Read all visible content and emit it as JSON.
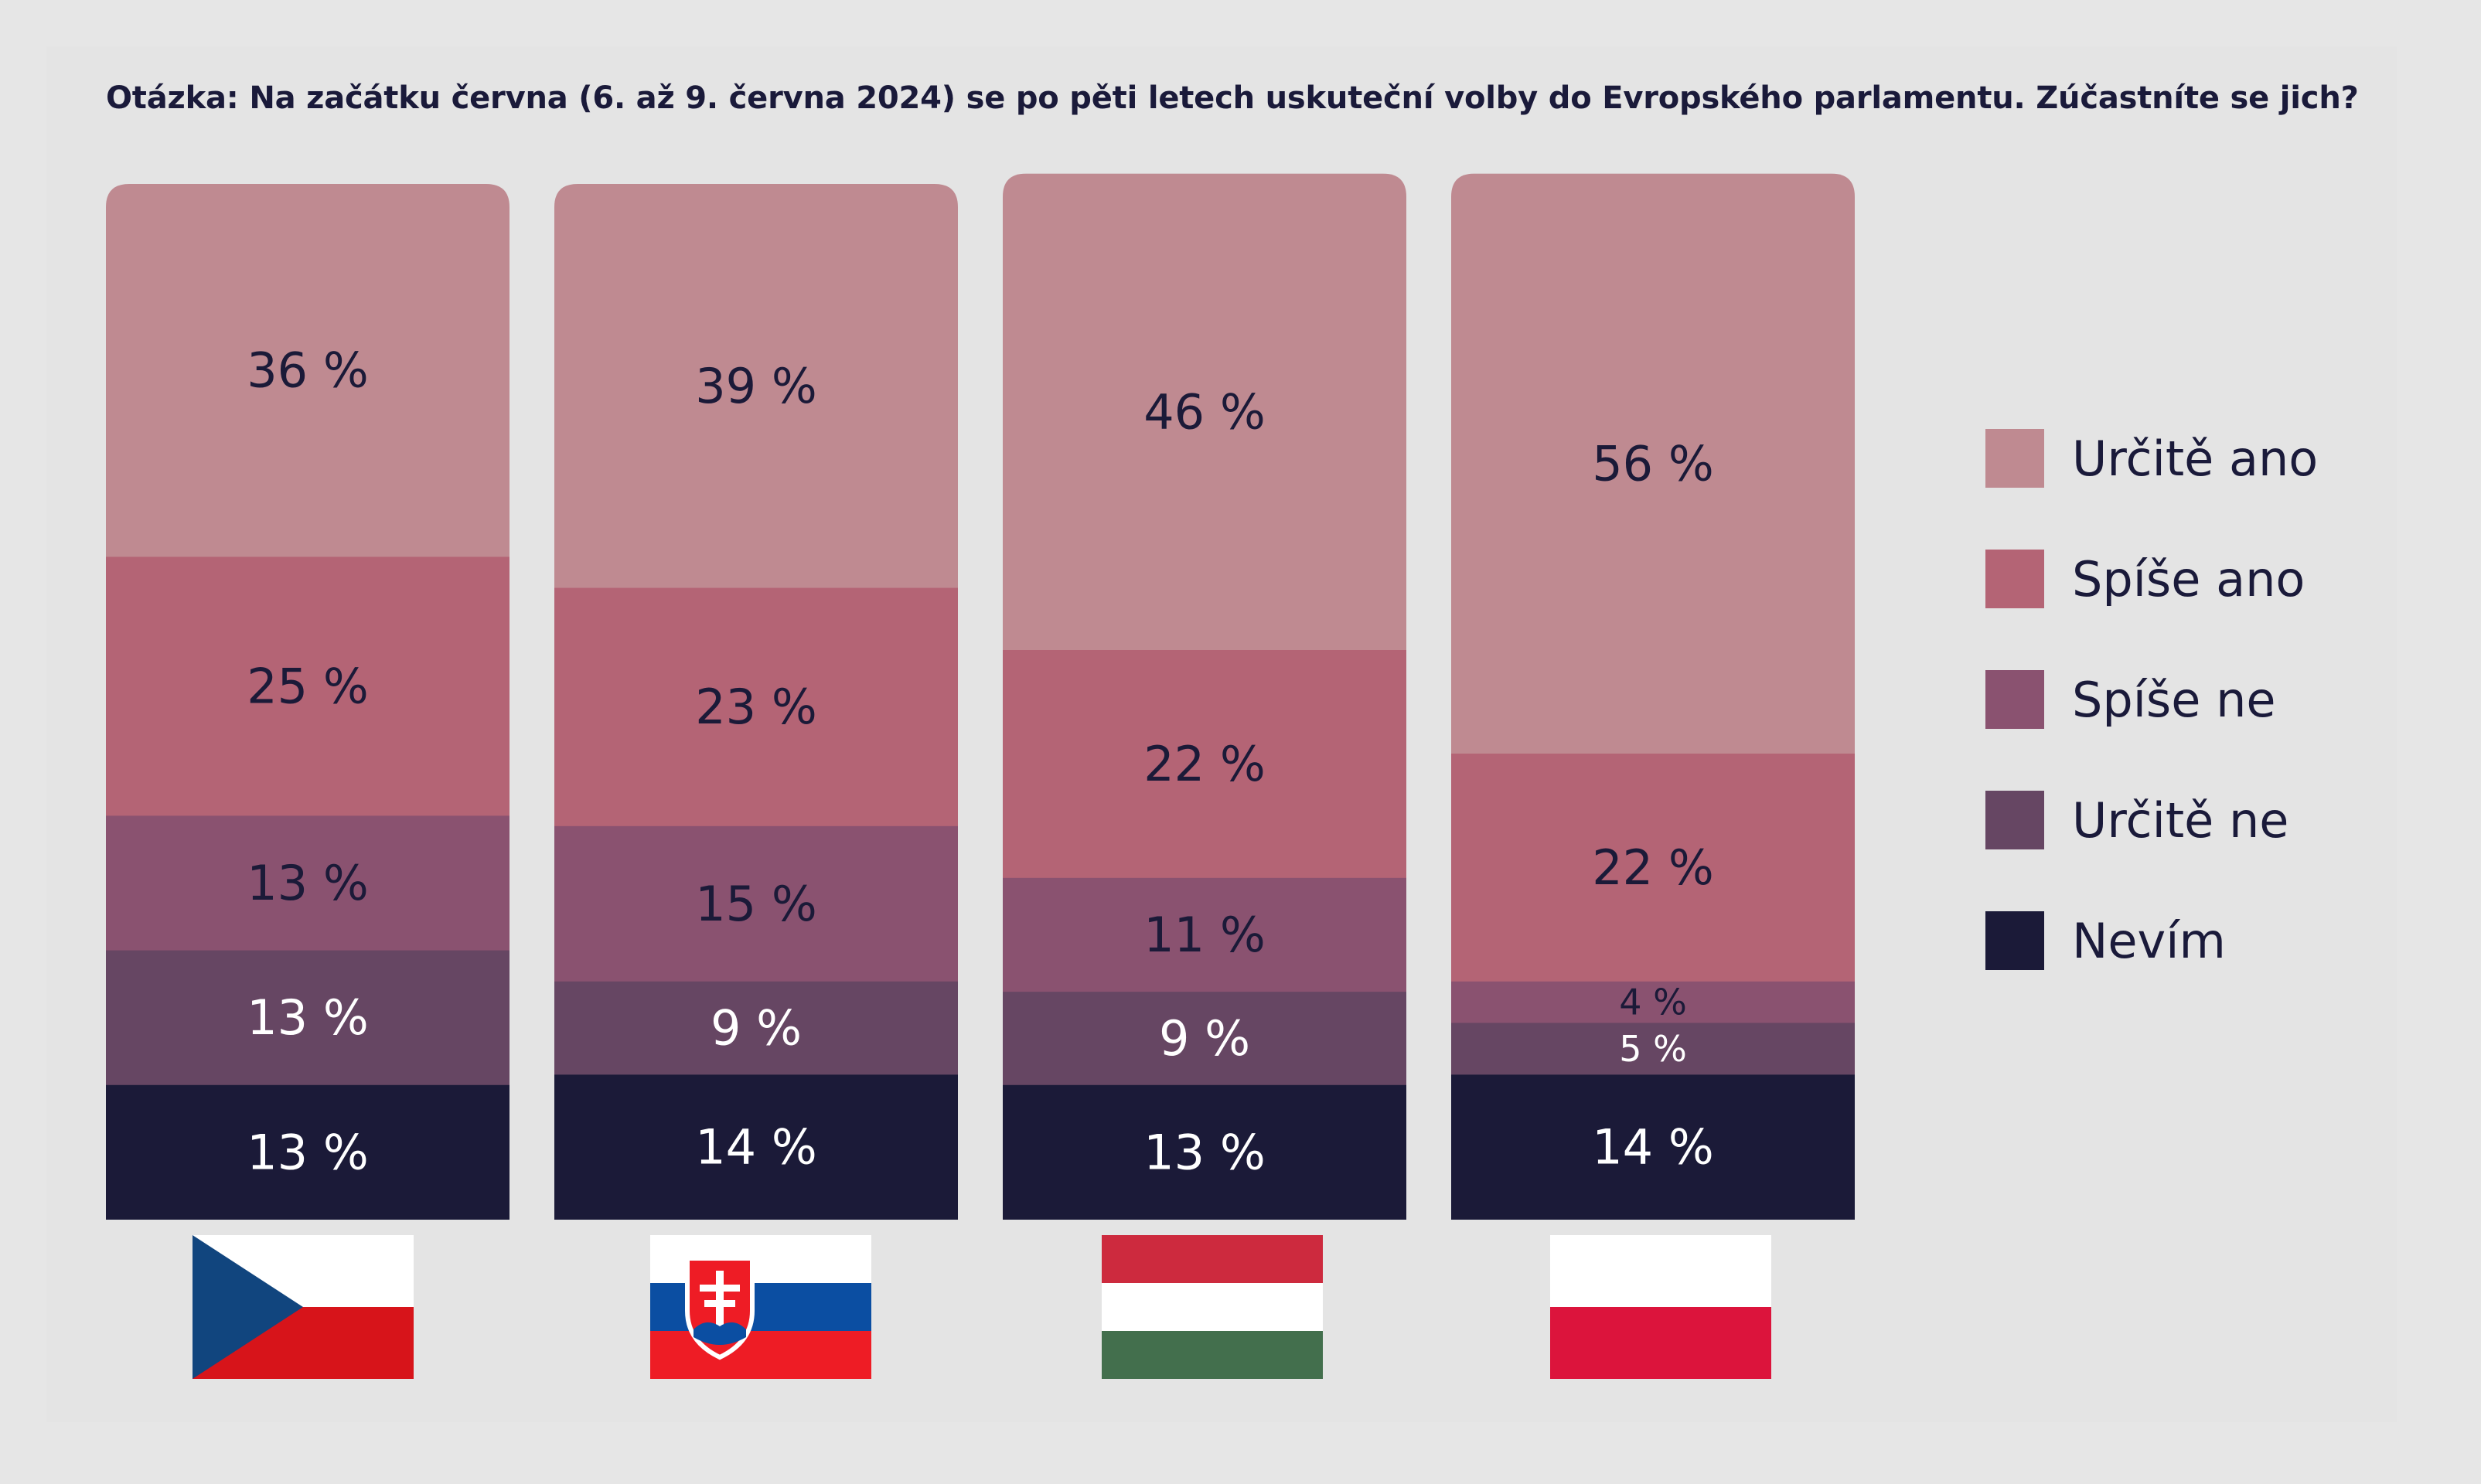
{
  "question": "Otázka: Na začátku června (6. až 9. června 2024) se po pěti letech uskuteční volby do Evropského parlamentu. Zúčastníte se jich?",
  "colors": {
    "urcite_ano": "#bf8a91",
    "spise_ano": "#b46475",
    "spise_ne": "#8a5270",
    "urcite_ne": "#664663",
    "nevim": "#1b1a38",
    "label_dark": "#1b1a38",
    "label_light": "#ffffff"
  },
  "chart_data": {
    "type": "bar",
    "stacked": true,
    "orientation": "vertical",
    "categories": [
      "CZ",
      "SK",
      "HU",
      "PL"
    ],
    "series": [
      {
        "name": "Určitě ano",
        "values": [
          36,
          39,
          46,
          56
        ]
      },
      {
        "name": "Spíše ano",
        "values": [
          25,
          23,
          22,
          22
        ]
      },
      {
        "name": "Spíše ne",
        "values": [
          13,
          15,
          11,
          4
        ]
      },
      {
        "name": "Určitě ne",
        "values": [
          13,
          9,
          9,
          5
        ]
      },
      {
        "name": "Nevím",
        "values": [
          13,
          14,
          13,
          14
        ]
      }
    ],
    "data_labels": [
      [
        "36 %",
        "25 %",
        "13 %",
        "13 %",
        "13 %"
      ],
      [
        "39 %",
        "23 %",
        "15 %",
        "9 %",
        "14 %"
      ],
      [
        "46 %",
        "22 %",
        "11 %",
        "9 %",
        "13 %"
      ],
      [
        "56 %",
        "22 %",
        "4 %",
        "5 %",
        "14 %"
      ]
    ],
    "legend_position": "right",
    "category_markers": [
      "flag-czech",
      "flag-slovakia",
      "flag-hungary",
      "flag-poland"
    ]
  },
  "legend": [
    {
      "label": "Určitě ano",
      "color": "#bf8a91"
    },
    {
      "label": "Spíše ano",
      "color": "#b46475"
    },
    {
      "label": "Spíše ne",
      "color": "#8a5270"
    },
    {
      "label": "Určitě ne",
      "color": "#664663"
    },
    {
      "label": "Nevím",
      "color": "#1b1a38"
    }
  ]
}
